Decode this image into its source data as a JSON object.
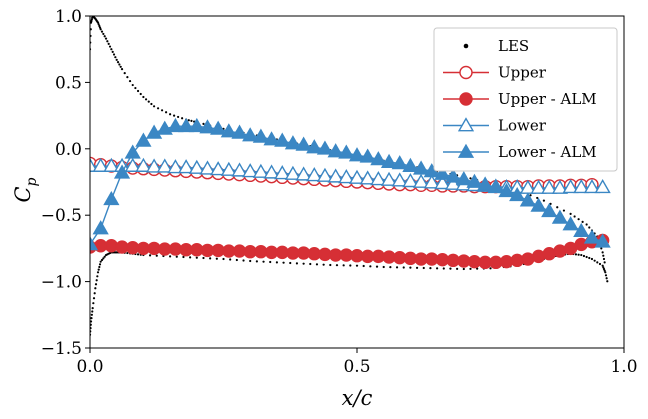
{
  "chart_data": {
    "type": "scatter",
    "title": "",
    "xlabel": "x/c",
    "ylabel_main": "C",
    "ylabel_sub": "p",
    "xlim": [
      0.0,
      1.0
    ],
    "ylim": [
      -1.5,
      1.0
    ],
    "xticks": [
      0.0,
      0.5,
      1.0
    ],
    "xtick_labels": [
      "0.0",
      "0.5",
      "1.0"
    ],
    "yticks": [
      1.0,
      0.5,
      0.0,
      -0.5,
      -1.0,
      -1.5
    ],
    "ytick_labels": [
      "1.0",
      "0.5",
      "0.0",
      "−0.5",
      "−1.0",
      "−1.5"
    ],
    "legend_position": "top-right",
    "colors": {
      "les": "#000000",
      "upper": "#d62f35",
      "lower": "#3b87c4",
      "axis": "#000000"
    },
    "series": [
      {
        "name": "LES",
        "kind": "dots",
        "color": "#000000",
        "x": [
          0.0,
          0.002,
          0.005,
          0.01,
          0.015,
          0.02,
          0.03,
          0.04,
          0.05,
          0.06,
          0.08,
          0.1,
          0.12,
          0.15,
          0.18,
          0.2,
          0.25,
          0.3,
          0.35,
          0.4,
          0.45,
          0.5,
          0.55,
          0.6,
          0.65,
          0.7,
          0.75,
          0.8,
          0.85,
          0.9,
          0.93,
          0.95,
          0.96,
          0.965
        ],
        "y": [
          0.75,
          0.95,
          1.0,
          0.98,
          0.95,
          0.9,
          0.83,
          0.75,
          0.67,
          0.6,
          0.48,
          0.39,
          0.32,
          0.26,
          0.22,
          0.2,
          0.15,
          0.11,
          0.07,
          0.03,
          -0.01,
          -0.05,
          -0.09,
          -0.13,
          -0.17,
          -0.21,
          -0.26,
          -0.31,
          -0.39,
          -0.49,
          -0.57,
          -0.66,
          -0.78,
          -0.88
        ]
      },
      {
        "name": "LES",
        "kind": "dots",
        "color": "#000000",
        "legend": false,
        "x": [
          0.0,
          0.002,
          0.005,
          0.01,
          0.015,
          0.02,
          0.03,
          0.04,
          0.05,
          0.06,
          0.08,
          0.1,
          0.15,
          0.2,
          0.25,
          0.3,
          0.35,
          0.4,
          0.45,
          0.5,
          0.55,
          0.6,
          0.65,
          0.7,
          0.75,
          0.8,
          0.85,
          0.88,
          0.9,
          0.92,
          0.94,
          0.96,
          0.965,
          0.97
        ],
        "y": [
          -1.4,
          -1.3,
          -1.2,
          -1.05,
          -0.93,
          -0.85,
          -0.8,
          -0.78,
          -0.78,
          -0.78,
          -0.79,
          -0.8,
          -0.81,
          -0.82,
          -0.83,
          -0.845,
          -0.855,
          -0.865,
          -0.875,
          -0.88,
          -0.89,
          -0.895,
          -0.9,
          -0.905,
          -0.9,
          -0.88,
          -0.83,
          -0.8,
          -0.79,
          -0.8,
          -0.83,
          -0.88,
          -0.93,
          -1.02
        ]
      },
      {
        "name": "Upper",
        "kind": "line",
        "marker": "circle",
        "filled": false,
        "color": "#d62f35",
        "x": [
          0.0,
          0.02,
          0.04,
          0.06,
          0.08,
          0.1,
          0.12,
          0.14,
          0.16,
          0.18,
          0.2,
          0.22,
          0.24,
          0.26,
          0.28,
          0.3,
          0.32,
          0.34,
          0.36,
          0.38,
          0.4,
          0.42,
          0.44,
          0.46,
          0.48,
          0.5,
          0.52,
          0.54,
          0.56,
          0.58,
          0.6,
          0.62,
          0.64,
          0.66,
          0.68,
          0.7,
          0.72,
          0.74,
          0.76,
          0.78,
          0.8,
          0.82,
          0.84,
          0.86,
          0.88,
          0.9,
          0.92,
          0.94
        ],
        "y": [
          -0.11,
          -0.12,
          -0.13,
          -0.14,
          -0.145,
          -0.15,
          -0.155,
          -0.16,
          -0.165,
          -0.17,
          -0.175,
          -0.18,
          -0.185,
          -0.19,
          -0.195,
          -0.2,
          -0.205,
          -0.21,
          -0.215,
          -0.22,
          -0.225,
          -0.23,
          -0.235,
          -0.24,
          -0.245,
          -0.25,
          -0.255,
          -0.26,
          -0.265,
          -0.27,
          -0.27,
          -0.275,
          -0.275,
          -0.28,
          -0.28,
          -0.28,
          -0.285,
          -0.285,
          -0.285,
          -0.285,
          -0.285,
          -0.285,
          -0.28,
          -0.28,
          -0.28,
          -0.275,
          -0.275,
          -0.27
        ]
      },
      {
        "name": "Upper - ALM",
        "kind": "line",
        "marker": "circle",
        "filled": true,
        "color": "#d62f35",
        "x": [
          0.0,
          0.02,
          0.04,
          0.06,
          0.08,
          0.1,
          0.12,
          0.14,
          0.16,
          0.18,
          0.2,
          0.22,
          0.24,
          0.26,
          0.28,
          0.3,
          0.32,
          0.34,
          0.36,
          0.38,
          0.4,
          0.42,
          0.44,
          0.46,
          0.48,
          0.5,
          0.52,
          0.54,
          0.56,
          0.58,
          0.6,
          0.62,
          0.64,
          0.66,
          0.68,
          0.7,
          0.72,
          0.74,
          0.76,
          0.78,
          0.8,
          0.82,
          0.84,
          0.86,
          0.88,
          0.9,
          0.92,
          0.94,
          0.96
        ],
        "y": [
          -0.74,
          -0.73,
          -0.73,
          -0.74,
          -0.745,
          -0.75,
          -0.75,
          -0.755,
          -0.755,
          -0.76,
          -0.76,
          -0.765,
          -0.765,
          -0.77,
          -0.77,
          -0.775,
          -0.775,
          -0.78,
          -0.78,
          -0.785,
          -0.785,
          -0.79,
          -0.795,
          -0.8,
          -0.8,
          -0.805,
          -0.81,
          -0.81,
          -0.815,
          -0.82,
          -0.825,
          -0.83,
          -0.83,
          -0.835,
          -0.84,
          -0.845,
          -0.85,
          -0.855,
          -0.855,
          -0.85,
          -0.84,
          -0.83,
          -0.81,
          -0.79,
          -0.77,
          -0.75,
          -0.72,
          -0.7,
          -0.69
        ]
      },
      {
        "name": "Lower",
        "kind": "line",
        "marker": "triangle",
        "filled": false,
        "color": "#3b87c4",
        "x": [
          0.0,
          0.02,
          0.04,
          0.06,
          0.08,
          0.1,
          0.12,
          0.14,
          0.16,
          0.18,
          0.2,
          0.22,
          0.24,
          0.26,
          0.28,
          0.3,
          0.32,
          0.34,
          0.36,
          0.38,
          0.4,
          0.42,
          0.44,
          0.46,
          0.48,
          0.5,
          0.52,
          0.54,
          0.56,
          0.58,
          0.6,
          0.62,
          0.64,
          0.66,
          0.68,
          0.7,
          0.72,
          0.74,
          0.76,
          0.78,
          0.8,
          0.82,
          0.84,
          0.86,
          0.88,
          0.9,
          0.92,
          0.94,
          0.96
        ],
        "y": [
          -0.13,
          -0.13,
          -0.13,
          -0.13,
          -0.13,
          -0.13,
          -0.135,
          -0.135,
          -0.14,
          -0.14,
          -0.145,
          -0.15,
          -0.155,
          -0.16,
          -0.165,
          -0.17,
          -0.175,
          -0.18,
          -0.185,
          -0.19,
          -0.195,
          -0.2,
          -0.205,
          -0.21,
          -0.215,
          -0.22,
          -0.225,
          -0.23,
          -0.235,
          -0.24,
          -0.245,
          -0.25,
          -0.255,
          -0.26,
          -0.265,
          -0.27,
          -0.275,
          -0.28,
          -0.285,
          -0.29,
          -0.29,
          -0.295,
          -0.295,
          -0.295,
          -0.295,
          -0.29,
          -0.29,
          -0.29,
          -0.29
        ]
      },
      {
        "name": "Lower - ALM",
        "kind": "line",
        "marker": "triangle",
        "filled": true,
        "color": "#3b87c4",
        "x": [
          0.0,
          0.02,
          0.04,
          0.06,
          0.08,
          0.1,
          0.12,
          0.14,
          0.16,
          0.18,
          0.2,
          0.22,
          0.24,
          0.26,
          0.28,
          0.3,
          0.32,
          0.34,
          0.36,
          0.38,
          0.4,
          0.42,
          0.44,
          0.46,
          0.48,
          0.5,
          0.52,
          0.54,
          0.56,
          0.58,
          0.6,
          0.62,
          0.64,
          0.66,
          0.68,
          0.7,
          0.72,
          0.74,
          0.76,
          0.78,
          0.8,
          0.82,
          0.84,
          0.86,
          0.88,
          0.9,
          0.92,
          0.94,
          0.96
        ],
        "y": [
          -0.72,
          -0.6,
          -0.38,
          -0.18,
          -0.03,
          0.06,
          0.12,
          0.15,
          0.17,
          0.17,
          0.17,
          0.16,
          0.15,
          0.13,
          0.12,
          0.1,
          0.09,
          0.07,
          0.06,
          0.04,
          0.03,
          0.01,
          0.0,
          -0.02,
          -0.03,
          -0.05,
          -0.06,
          -0.08,
          -0.1,
          -0.11,
          -0.13,
          -0.15,
          -0.17,
          -0.19,
          -0.21,
          -0.23,
          -0.25,
          -0.27,
          -0.29,
          -0.32,
          -0.35,
          -0.39,
          -0.43,
          -0.47,
          -0.52,
          -0.57,
          -0.62,
          -0.67,
          -0.7
        ]
      }
    ]
  }
}
